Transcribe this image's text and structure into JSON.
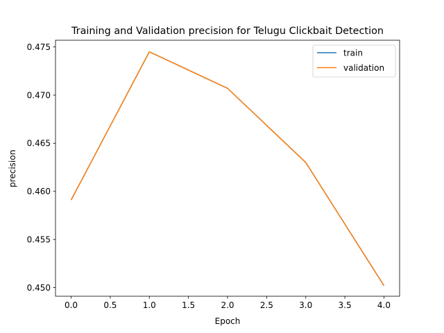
{
  "chart_data": {
    "type": "line",
    "title": "Training and Validation precision for Telugu Clickbait Detection",
    "xlabel": "Epoch",
    "ylabel": "precision",
    "xlim": [
      -0.2,
      4.2
    ],
    "ylim": [
      0.4491,
      0.4757
    ],
    "x_ticks": [
      0.0,
      0.5,
      1.0,
      1.5,
      2.0,
      2.5,
      3.0,
      3.5,
      4.0
    ],
    "x_tick_labels": [
      "0.0",
      "0.5",
      "1.0",
      "1.5",
      "2.0",
      "2.5",
      "3.0",
      "3.5",
      "4.0"
    ],
    "y_ticks": [
      0.45,
      0.455,
      0.46,
      0.465,
      0.47,
      0.475
    ],
    "y_tick_labels": [
      "0.450",
      "0.455",
      "0.460",
      "0.465",
      "0.470",
      "0.475"
    ],
    "grid": false,
    "legend_position": "top-right",
    "x": [
      0,
      1,
      2,
      3,
      4
    ],
    "series": [
      {
        "name": "train",
        "color": "#1f77b4",
        "values": [
          0.4591,
          0.4745,
          0.4707,
          0.463,
          0.4502
        ]
      },
      {
        "name": "validation",
        "color": "#ff7f0e",
        "values": [
          0.4591,
          0.4745,
          0.4707,
          0.463,
          0.4502
        ]
      }
    ]
  }
}
